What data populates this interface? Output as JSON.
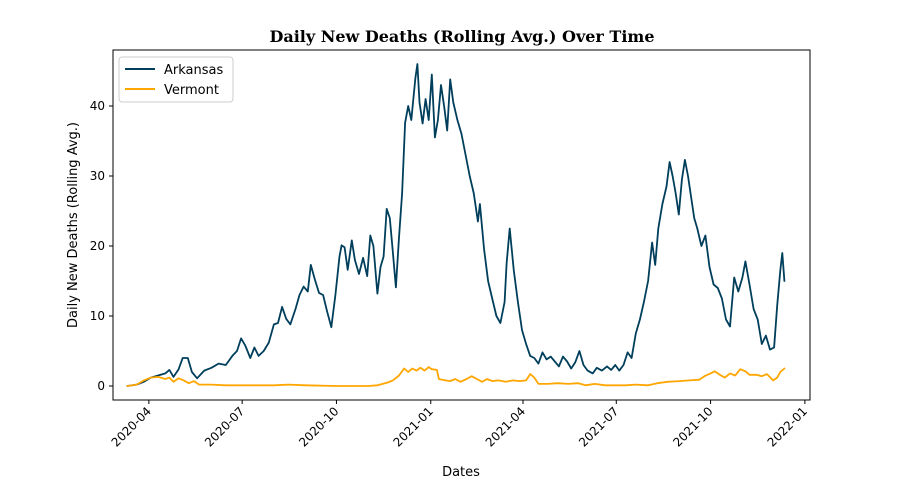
{
  "chart_data": {
    "type": "line",
    "title": "Daily New Deaths (Rolling Avg.) Over Time",
    "xlabel": "Dates",
    "ylabel": "Daily New Deaths (Rolling Avg.)",
    "xlim": [
      "2020-02-26",
      "2022-01-06"
    ],
    "ylim": [
      -2,
      48
    ],
    "x_ticks": [
      "2020-04-01",
      "2020-07-01",
      "2020-10-01",
      "2021-01-01",
      "2021-04-01",
      "2021-07-01",
      "2021-10-01",
      "2022-01-01"
    ],
    "x_tick_labels": [
      "2020-04",
      "2020-07",
      "2020-10",
      "2021-01",
      "2021-04",
      "2021-07",
      "2021-10",
      "2022-01"
    ],
    "y_ticks": [
      0,
      10,
      20,
      30,
      40
    ],
    "y_tick_labels": [
      "0",
      "10",
      "20",
      "30",
      "40"
    ],
    "legend_position": "top-left",
    "grid": false,
    "series": [
      {
        "name": "Arkansas",
        "color": "#003f5c",
        "points": [
          [
            "2020-03-11",
            0
          ],
          [
            "2020-03-20",
            0.2
          ],
          [
            "2020-03-27",
            0.6
          ],
          [
            "2020-04-03",
            1.2
          ],
          [
            "2020-04-10",
            1.5
          ],
          [
            "2020-04-17",
            1.8
          ],
          [
            "2020-04-21",
            2.3
          ],
          [
            "2020-04-25",
            1.3
          ],
          [
            "2020-04-30",
            2.4
          ],
          [
            "2020-05-04",
            4.0
          ],
          [
            "2020-05-09",
            4.0
          ],
          [
            "2020-05-13",
            2.0
          ],
          [
            "2020-05-18",
            1.1
          ],
          [
            "2020-05-25",
            2.2
          ],
          [
            "2020-06-01",
            2.6
          ],
          [
            "2020-06-08",
            3.2
          ],
          [
            "2020-06-15",
            3.0
          ],
          [
            "2020-06-22",
            4.4
          ],
          [
            "2020-06-26",
            5.0
          ],
          [
            "2020-06-30",
            6.8
          ],
          [
            "2020-07-04",
            5.8
          ],
          [
            "2020-07-09",
            4.0
          ],
          [
            "2020-07-13",
            5.5
          ],
          [
            "2020-07-17",
            4.3
          ],
          [
            "2020-07-22",
            5.0
          ],
          [
            "2020-07-27",
            6.2
          ],
          [
            "2020-08-01",
            8.8
          ],
          [
            "2020-08-05",
            9.0
          ],
          [
            "2020-08-09",
            11.3
          ],
          [
            "2020-08-13",
            9.6
          ],
          [
            "2020-08-17",
            8.8
          ],
          [
            "2020-08-22",
            11.0
          ],
          [
            "2020-08-26",
            13.0
          ],
          [
            "2020-08-30",
            14.2
          ],
          [
            "2020-09-03",
            13.5
          ],
          [
            "2020-09-06",
            17.3
          ],
          [
            "2020-09-10",
            15.2
          ],
          [
            "2020-09-14",
            13.3
          ],
          [
            "2020-09-18",
            13.0
          ],
          [
            "2020-09-22",
            10.6
          ],
          [
            "2020-09-26",
            8.4
          ],
          [
            "2020-09-30",
            13.0
          ],
          [
            "2020-10-04",
            18.5
          ],
          [
            "2020-10-06",
            20.1
          ],
          [
            "2020-10-09",
            19.8
          ],
          [
            "2020-10-12",
            16.6
          ],
          [
            "2020-10-16",
            20.8
          ],
          [
            "2020-10-19",
            18.0
          ],
          [
            "2020-10-23",
            16.0
          ],
          [
            "2020-10-27",
            18.3
          ],
          [
            "2020-10-31",
            15.7
          ],
          [
            "2020-11-03",
            21.5
          ],
          [
            "2020-11-06",
            20.0
          ],
          [
            "2020-11-10",
            13.2
          ],
          [
            "2020-11-13",
            17.0
          ],
          [
            "2020-11-16",
            18.5
          ],
          [
            "2020-11-19",
            25.3
          ],
          [
            "2020-11-22",
            24.0
          ],
          [
            "2020-11-25",
            19.2
          ],
          [
            "2020-11-28",
            14.1
          ],
          [
            "2020-12-01",
            21.2
          ],
          [
            "2020-12-04",
            27.5
          ],
          [
            "2020-12-07",
            37.6
          ],
          [
            "2020-12-10",
            40.0
          ],
          [
            "2020-12-13",
            38.0
          ],
          [
            "2020-12-17",
            44.0
          ],
          [
            "2020-12-19",
            46.0
          ],
          [
            "2020-12-21",
            40.5
          ],
          [
            "2020-12-24",
            37.5
          ],
          [
            "2020-12-27",
            41.0
          ],
          [
            "2020-12-30",
            38.0
          ],
          [
            "2021-01-02",
            44.5
          ],
          [
            "2021-01-05",
            35.5
          ],
          [
            "2021-01-08",
            38.0
          ],
          [
            "2021-01-11",
            43.0
          ],
          [
            "2021-01-14",
            40.0
          ],
          [
            "2021-01-17",
            36.5
          ],
          [
            "2021-01-20",
            43.8
          ],
          [
            "2021-01-23",
            40.5
          ],
          [
            "2021-01-27",
            38.0
          ],
          [
            "2021-01-31",
            36.0
          ],
          [
            "2021-02-04",
            33.0
          ],
          [
            "2021-02-08",
            30.0
          ],
          [
            "2021-02-12",
            27.5
          ],
          [
            "2021-02-16",
            23.5
          ],
          [
            "2021-02-18",
            26.0
          ],
          [
            "2021-02-22",
            19.5
          ],
          [
            "2021-02-26",
            15.0
          ],
          [
            "2021-03-02",
            12.5
          ],
          [
            "2021-03-06",
            10.0
          ],
          [
            "2021-03-10",
            9.0
          ],
          [
            "2021-03-14",
            12.0
          ],
          [
            "2021-03-16",
            17.5
          ],
          [
            "2021-03-19",
            22.5
          ],
          [
            "2021-03-23",
            16.5
          ],
          [
            "2021-03-27",
            12.0
          ],
          [
            "2021-03-31",
            8.0
          ],
          [
            "2021-04-04",
            6.0
          ],
          [
            "2021-04-08",
            4.3
          ],
          [
            "2021-04-12",
            4.0
          ],
          [
            "2021-04-16",
            3.2
          ],
          [
            "2021-04-20",
            4.8
          ],
          [
            "2021-04-24",
            3.8
          ],
          [
            "2021-04-28",
            4.2
          ],
          [
            "2021-05-02",
            3.5
          ],
          [
            "2021-05-06",
            2.8
          ],
          [
            "2021-05-10",
            4.2
          ],
          [
            "2021-05-14",
            3.5
          ],
          [
            "2021-05-18",
            2.5
          ],
          [
            "2021-05-22",
            3.4
          ],
          [
            "2021-05-26",
            5.0
          ],
          [
            "2021-05-30",
            3.0
          ],
          [
            "2021-06-03",
            2.2
          ],
          [
            "2021-06-08",
            1.8
          ],
          [
            "2021-06-12",
            2.6
          ],
          [
            "2021-06-17",
            2.2
          ],
          [
            "2021-06-22",
            2.8
          ],
          [
            "2021-06-26",
            2.3
          ],
          [
            "2021-06-30",
            3.0
          ],
          [
            "2021-07-04",
            2.2
          ],
          [
            "2021-07-08",
            3.0
          ],
          [
            "2021-07-12",
            4.8
          ],
          [
            "2021-07-16",
            4.0
          ],
          [
            "2021-07-20",
            7.5
          ],
          [
            "2021-07-24",
            9.5
          ],
          [
            "2021-07-28",
            12.0
          ],
          [
            "2021-08-01",
            15.0
          ],
          [
            "2021-08-05",
            20.5
          ],
          [
            "2021-08-08",
            17.3
          ],
          [
            "2021-08-11",
            22.5
          ],
          [
            "2021-08-15",
            26.0
          ],
          [
            "2021-08-19",
            28.5
          ],
          [
            "2021-08-22",
            32.0
          ],
          [
            "2021-08-25",
            30.0
          ],
          [
            "2021-08-28",
            27.5
          ],
          [
            "2021-08-31",
            24.5
          ],
          [
            "2021-09-03",
            29.5
          ],
          [
            "2021-09-06",
            32.3
          ],
          [
            "2021-09-09",
            30.0
          ],
          [
            "2021-09-12",
            27.0
          ],
          [
            "2021-09-15",
            24.0
          ],
          [
            "2021-09-18",
            22.5
          ],
          [
            "2021-09-22",
            20.0
          ],
          [
            "2021-09-26",
            21.5
          ],
          [
            "2021-09-30",
            17.0
          ],
          [
            "2021-10-04",
            14.5
          ],
          [
            "2021-10-08",
            14.0
          ],
          [
            "2021-10-12",
            12.5
          ],
          [
            "2021-10-16",
            9.5
          ],
          [
            "2021-10-20",
            8.5
          ],
          [
            "2021-10-24",
            15.5
          ],
          [
            "2021-10-28",
            13.5
          ],
          [
            "2021-11-01",
            15.5
          ],
          [
            "2021-11-04",
            17.8
          ],
          [
            "2021-11-08",
            14.5
          ],
          [
            "2021-11-12",
            11.0
          ],
          [
            "2021-11-16",
            9.5
          ],
          [
            "2021-11-20",
            6.0
          ],
          [
            "2021-11-24",
            7.2
          ],
          [
            "2021-11-28",
            5.2
          ],
          [
            "2021-12-02",
            5.5
          ],
          [
            "2021-12-05",
            11.5
          ],
          [
            "2021-12-08",
            16.5
          ],
          [
            "2021-12-10",
            19.0
          ],
          [
            "2021-12-12",
            15.0
          ]
        ]
      },
      {
        "name": "Vermont",
        "color": "#ffa600",
        "points": [
          [
            "2020-03-11",
            0
          ],
          [
            "2020-03-20",
            0.2
          ],
          [
            "2020-03-27",
            0.8
          ],
          [
            "2020-04-03",
            1.2
          ],
          [
            "2020-04-10",
            1.3
          ],
          [
            "2020-04-17",
            1.0
          ],
          [
            "2020-04-21",
            1.2
          ],
          [
            "2020-04-25",
            0.6
          ],
          [
            "2020-04-30",
            1.1
          ],
          [
            "2020-05-05",
            0.8
          ],
          [
            "2020-05-10",
            0.4
          ],
          [
            "2020-05-15",
            0.7
          ],
          [
            "2020-05-20",
            0.2
          ],
          [
            "2020-06-01",
            0.2
          ],
          [
            "2020-06-15",
            0.1
          ],
          [
            "2020-07-01",
            0.1
          ],
          [
            "2020-08-01",
            0.1
          ],
          [
            "2020-08-15",
            0.2
          ],
          [
            "2020-09-01",
            0.1
          ],
          [
            "2020-10-01",
            0
          ],
          [
            "2020-11-01",
            0
          ],
          [
            "2020-11-10",
            0.1
          ],
          [
            "2020-11-20",
            0.5
          ],
          [
            "2020-11-25",
            0.8
          ],
          [
            "2020-12-01",
            1.5
          ],
          [
            "2020-12-06",
            2.5
          ],
          [
            "2020-12-10",
            2.0
          ],
          [
            "2020-12-14",
            2.5
          ],
          [
            "2020-12-18",
            2.2
          ],
          [
            "2020-12-22",
            2.6
          ],
          [
            "2020-12-26",
            2.2
          ],
          [
            "2020-12-30",
            2.7
          ],
          [
            "2021-01-02",
            2.4
          ],
          [
            "2021-01-07",
            2.3
          ],
          [
            "2021-01-09",
            1.0
          ],
          [
            "2021-01-15",
            0.8
          ],
          [
            "2021-01-20",
            0.7
          ],
          [
            "2021-01-25",
            1.0
          ],
          [
            "2021-01-30",
            0.6
          ],
          [
            "2021-02-05",
            1.0
          ],
          [
            "2021-02-10",
            1.4
          ],
          [
            "2021-02-15",
            1.0
          ],
          [
            "2021-02-20",
            0.6
          ],
          [
            "2021-02-25",
            1.0
          ],
          [
            "2021-03-02",
            0.7
          ],
          [
            "2021-03-08",
            0.8
          ],
          [
            "2021-03-15",
            0.6
          ],
          [
            "2021-03-22",
            0.8
          ],
          [
            "2021-03-29",
            0.7
          ],
          [
            "2021-04-04",
            0.8
          ],
          [
            "2021-04-08",
            1.7
          ],
          [
            "2021-04-12",
            1.2
          ],
          [
            "2021-04-16",
            0.3
          ],
          [
            "2021-04-25",
            0.3
          ],
          [
            "2021-05-05",
            0.4
          ],
          [
            "2021-05-15",
            0.3
          ],
          [
            "2021-05-25",
            0.4
          ],
          [
            "2021-06-01",
            0.1
          ],
          [
            "2021-06-10",
            0.3
          ],
          [
            "2021-06-20",
            0.1
          ],
          [
            "2021-07-01",
            0.1
          ],
          [
            "2021-07-10",
            0.1
          ],
          [
            "2021-07-20",
            0.2
          ],
          [
            "2021-08-01",
            0.1
          ],
          [
            "2021-08-10",
            0.4
          ],
          [
            "2021-08-20",
            0.6
          ],
          [
            "2021-09-01",
            0.7
          ],
          [
            "2021-09-10",
            0.8
          ],
          [
            "2021-09-20",
            0.9
          ],
          [
            "2021-09-25",
            1.4
          ],
          [
            "2021-10-01",
            1.8
          ],
          [
            "2021-10-05",
            2.1
          ],
          [
            "2021-10-10",
            1.6
          ],
          [
            "2021-10-15",
            1.2
          ],
          [
            "2021-10-20",
            1.8
          ],
          [
            "2021-10-25",
            1.5
          ],
          [
            "2021-10-30",
            2.4
          ],
          [
            "2021-11-04",
            2.1
          ],
          [
            "2021-11-08",
            1.6
          ],
          [
            "2021-11-15",
            1.6
          ],
          [
            "2021-11-20",
            1.4
          ],
          [
            "2021-11-25",
            1.7
          ],
          [
            "2021-12-01",
            0.8
          ],
          [
            "2021-12-05",
            1.2
          ],
          [
            "2021-12-08",
            2.0
          ],
          [
            "2021-12-12",
            2.5
          ]
        ]
      }
    ]
  }
}
